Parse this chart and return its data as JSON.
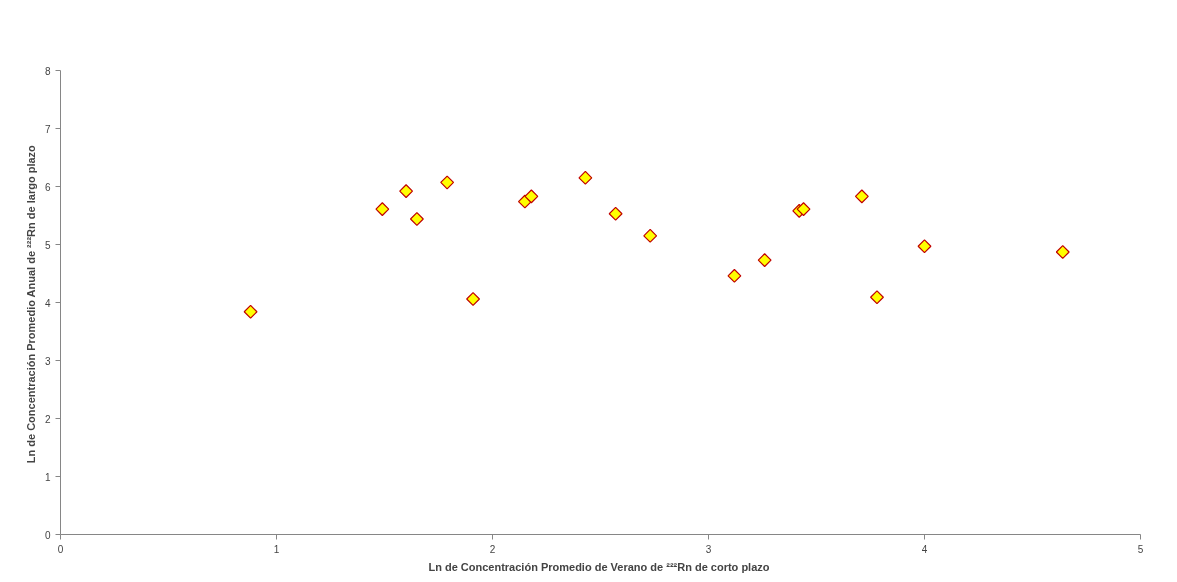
{
  "chart_data": {
    "type": "scatter",
    "xlabel": "Ln de Concentración  Promedio de Verano de ²²²Rn de corto plazo",
    "ylabel": "Ln de Concentración  Promedio Anual de ²²²Rn de largo plazo",
    "x": [
      0.88,
      1.49,
      1.6,
      1.65,
      1.79,
      1.91,
      2.15,
      2.18,
      2.43,
      2.57,
      2.73,
      3.12,
      3.26,
      3.42,
      3.44,
      3.71,
      3.78,
      4.0,
      4.64
    ],
    "series": [
      {
        "color": "#ffff00",
        "values": [
          3.84,
          5.61,
          5.92,
          5.44,
          6.07,
          4.06,
          5.74,
          5.83,
          6.15,
          5.53,
          5.15,
          4.46,
          4.73,
          5.58,
          5.61,
          5.83,
          4.09,
          4.97,
          4.87
        ]
      }
    ],
    "xlim": [
      0,
      5
    ],
    "xticks": [
      0,
      1,
      2,
      3,
      4,
      5
    ],
    "ylim": [
      0,
      8
    ],
    "yticks": [
      0,
      1,
      2,
      3,
      4,
      5,
      6,
      7,
      8
    ],
    "marker": "diamond",
    "grid": false
  }
}
